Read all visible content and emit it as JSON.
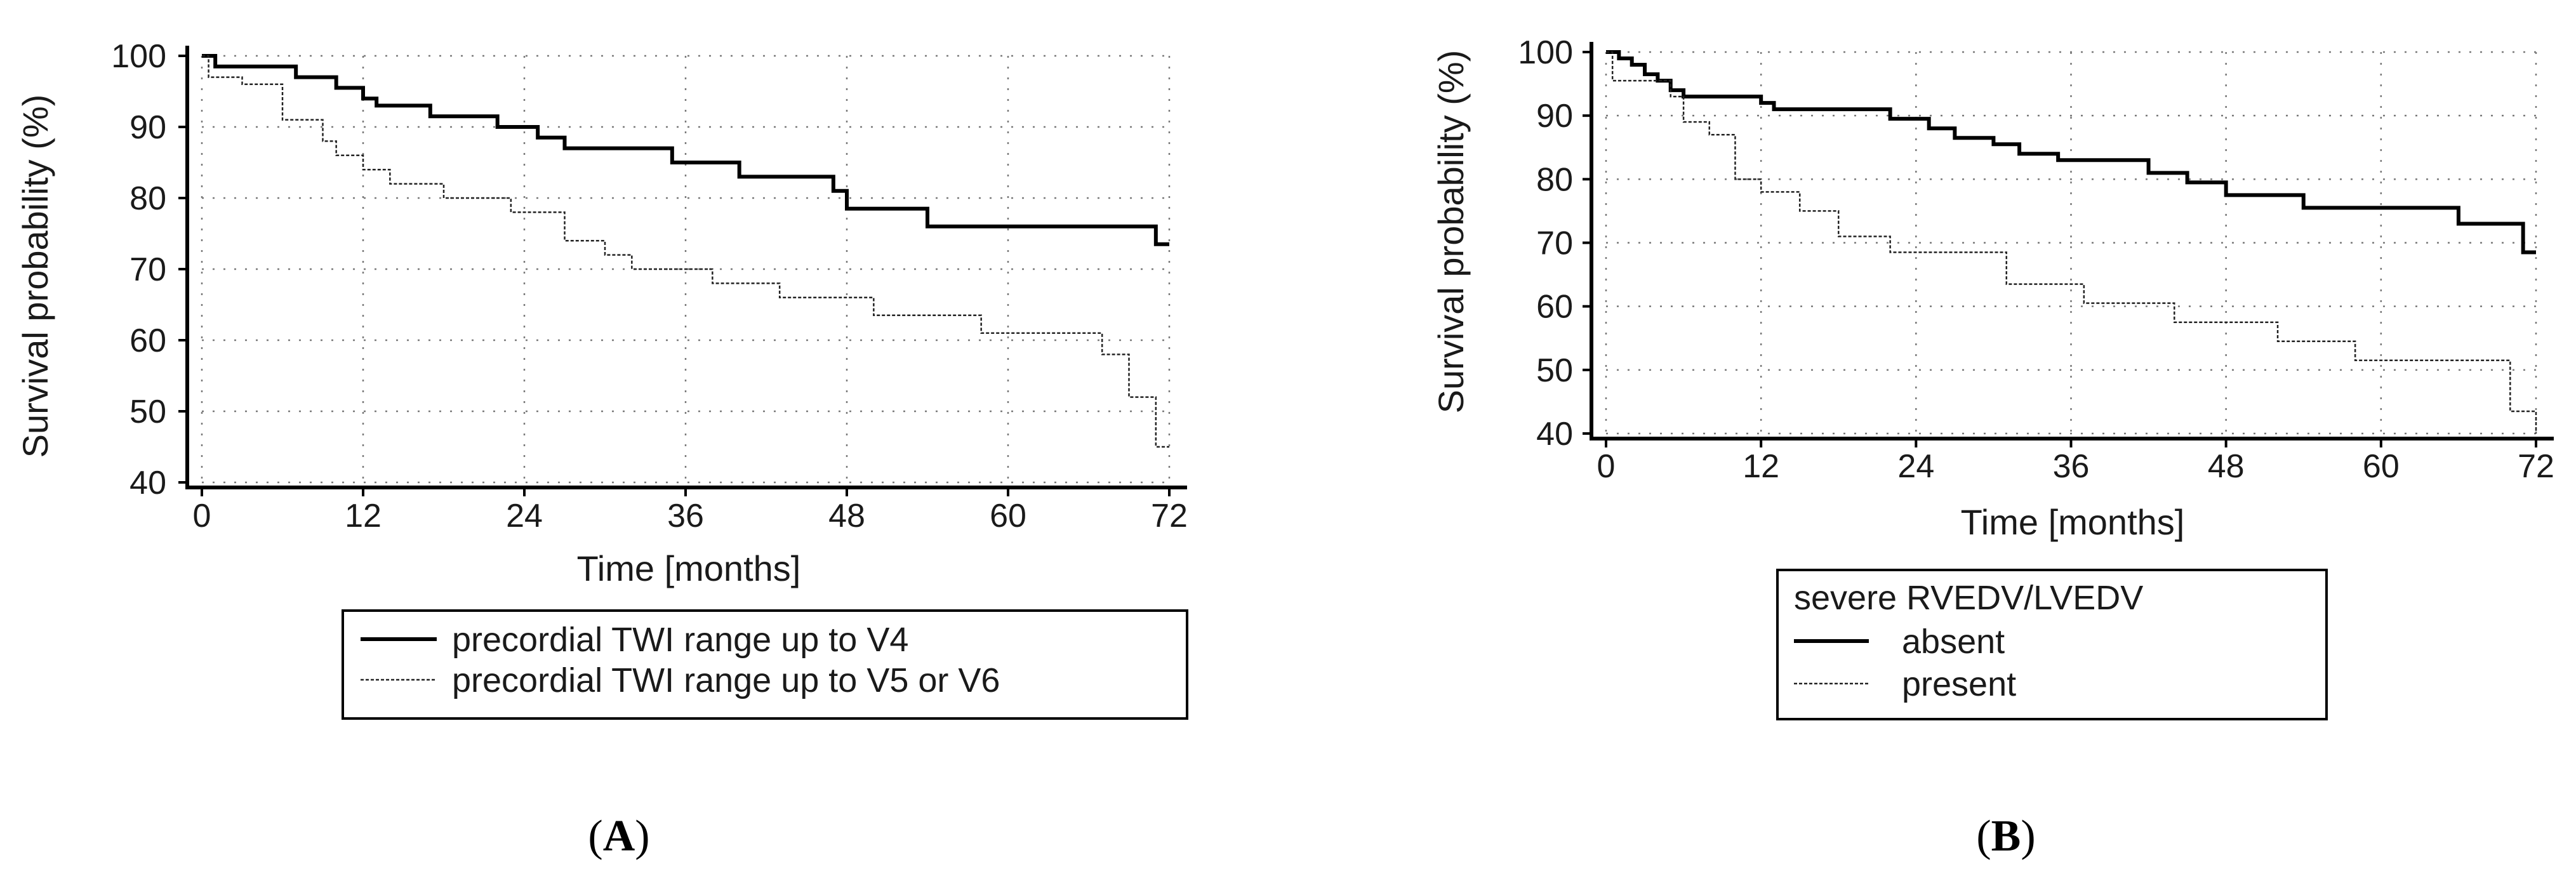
{
  "chart_data": [
    {
      "panel": "A",
      "type": "line",
      "title": "",
      "xlabel": "Time  [months]",
      "ylabel": "Survival probability (%)",
      "xlim": [
        0,
        72
      ],
      "ylim": [
        40,
        100
      ],
      "x_ticks": [
        0,
        12,
        24,
        36,
        48,
        60,
        72
      ],
      "y_ticks": [
        40,
        50,
        60,
        70,
        80,
        90,
        100
      ],
      "legend_title": "",
      "series": [
        {
          "name": "precordial TWI range up to V4",
          "style": "solid",
          "x": [
            0,
            1,
            7,
            10,
            12,
            13,
            17,
            22,
            25,
            27,
            35,
            40,
            47,
            48,
            54,
            71,
            72
          ],
          "y": [
            100,
            98.5,
            97,
            95.5,
            94,
            93,
            91.5,
            90,
            88.5,
            87,
            85,
            83,
            81,
            78.5,
            76,
            73.5,
            73.5
          ]
        },
        {
          "name": "precordial TWI range up to V5 or V6",
          "style": "dashed",
          "x": [
            0,
            0.5,
            3,
            6,
            9,
            10,
            12,
            14,
            18,
            23,
            27,
            30,
            32,
            38,
            43,
            50,
            58,
            67,
            69,
            71,
            72
          ],
          "y": [
            100,
            97,
            96,
            91,
            88,
            86,
            84,
            82,
            80,
            78,
            74,
            72,
            70,
            68,
            66,
            63.5,
            61,
            58,
            52,
            45,
            45
          ]
        }
      ]
    },
    {
      "panel": "B",
      "type": "line",
      "title": "",
      "xlabel": "Time [months]",
      "ylabel": "Survival probability (%)",
      "xlim": [
        0,
        72
      ],
      "ylim": [
        40,
        100
      ],
      "x_ticks": [
        0,
        12,
        24,
        36,
        48,
        60,
        72
      ],
      "y_ticks": [
        40,
        50,
        60,
        70,
        80,
        90,
        100
      ],
      "legend_title": "severe RVEDV/LVEDV",
      "series": [
        {
          "name": "absent",
          "style": "solid",
          "x": [
            0,
            1,
            2,
            3,
            4,
            5,
            6,
            12,
            13,
            22,
            25,
            27,
            30,
            32,
            35,
            42,
            45,
            48,
            54,
            66,
            71,
            72
          ],
          "y": [
            100,
            99,
            98,
            96.5,
            95.5,
            94,
            93,
            92,
            91,
            89.5,
            88,
            86.5,
            85.5,
            84,
            83,
            81,
            79.5,
            77.5,
            75.5,
            73,
            68.5,
            68.5
          ]
        },
        {
          "name": "present",
          "style": "dashed",
          "x": [
            0,
            0.5,
            5,
            6,
            8,
            10,
            12,
            15,
            18,
            22,
            31,
            37,
            44,
            52,
            58,
            65,
            70,
            72
          ],
          "y": [
            100,
            95.5,
            93,
            89,
            87,
            80,
            78,
            75,
            71,
            68.5,
            63.5,
            60.5,
            57.5,
            54.5,
            51.5,
            51.5,
            43.5,
            40
          ]
        }
      ]
    }
  ],
  "panels": [
    {
      "label_open": "(",
      "label": "A",
      "label_close": ")"
    },
    {
      "label_open": "(",
      "label": "B",
      "label_close": ")"
    }
  ]
}
